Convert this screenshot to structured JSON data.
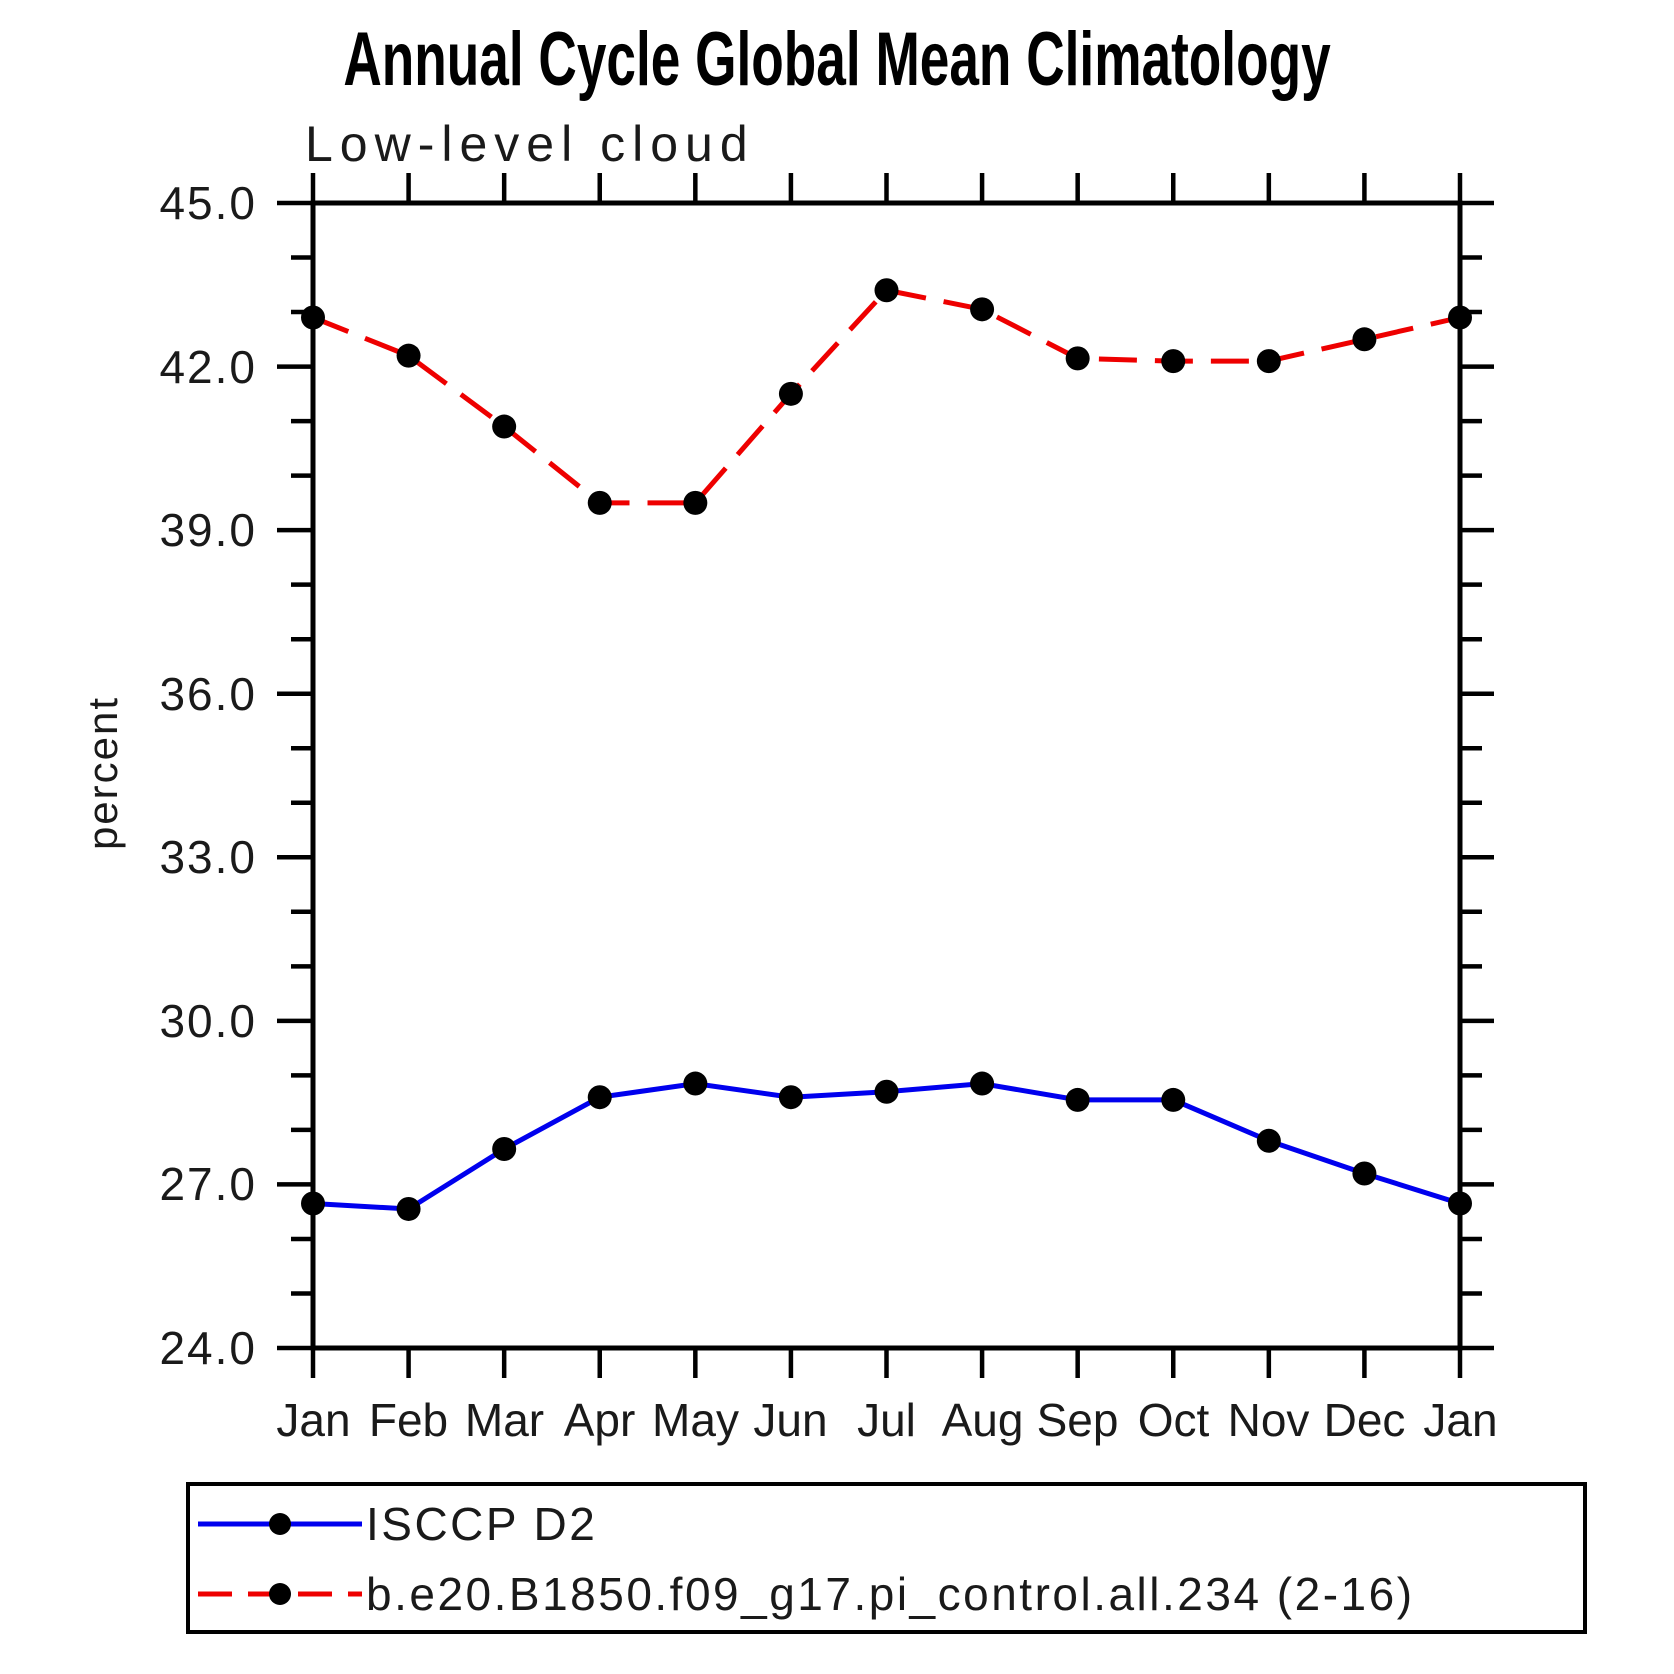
{
  "title": "Annual Cycle Global Mean Climatology",
  "subtitle": "Low-level cloud",
  "chart_data": {
    "type": "line",
    "x_categories": [
      "Jan",
      "Feb",
      "Mar",
      "Apr",
      "May",
      "Jun",
      "Jul",
      "Aug",
      "Sep",
      "Oct",
      "Nov",
      "Dec",
      "Jan"
    ],
    "xlabel": "",
    "ylabel": "percent",
    "ylim": [
      24.0,
      45.0
    ],
    "y_major_ticks": [
      24.0,
      27.0,
      30.0,
      33.0,
      36.0,
      39.0,
      42.0,
      45.0
    ],
    "y_ticklabels": [
      "24.0",
      "27.0",
      "30.0",
      "33.0",
      "36.0",
      "39.0",
      "42.0",
      "45.0"
    ],
    "y_minor_tick_step": 1.0,
    "grid": false,
    "legend_position": "bottom",
    "axis_color": "#000000",
    "marker_color": "#000000",
    "series": [
      {
        "name": "ISCCP D2",
        "color": "#0000ee",
        "line_style": "solid",
        "marker": "circle",
        "values": [
          26.65,
          26.55,
          27.65,
          28.6,
          28.85,
          28.6,
          28.7,
          28.85,
          28.55,
          28.55,
          27.8,
          27.2,
          26.65
        ]
      },
      {
        "name": "b.e20.B1850.f09_g17.pi_control.all.234 (2-16)",
        "color": "#ee0000",
        "line_style": "dashed",
        "marker": "circle",
        "values": [
          42.9,
          42.2,
          40.9,
          39.5,
          39.5,
          41.5,
          43.4,
          43.05,
          42.15,
          42.1,
          42.1,
          42.5,
          42.9
        ]
      }
    ]
  }
}
